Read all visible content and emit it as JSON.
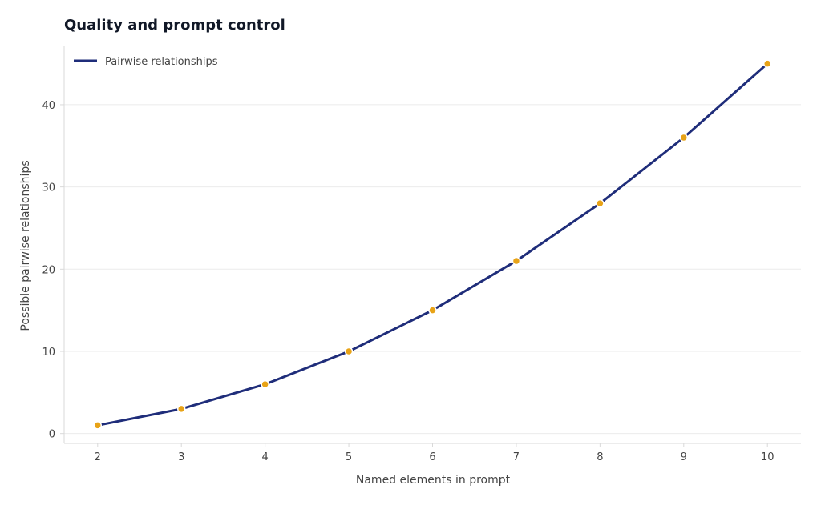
{
  "chart_data": {
    "type": "line",
    "title": "Quality and prompt control",
    "xlabel": "Named elements in prompt",
    "ylabel": "Possible pairwise relationships",
    "x": [
      2,
      3,
      4,
      5,
      6,
      7,
      8,
      9,
      10
    ],
    "series": [
      {
        "name": "Pairwise relationships",
        "values": [
          1,
          3,
          6,
          10,
          15,
          21,
          28,
          36,
          45
        ]
      }
    ],
    "xticks": [
      2,
      3,
      4,
      5,
      6,
      7,
      8,
      9,
      10
    ],
    "yticks": [
      0,
      10,
      20,
      30,
      40
    ],
    "xlim": [
      1.6,
      10.4
    ],
    "ylim": [
      -1.2,
      47.2
    ],
    "grid": true,
    "legend_position": "top-left",
    "colors": {
      "line": "#1f2d7a",
      "marker": "#e8a317",
      "grid": "#ebebeb",
      "axis": "#d9d9d9"
    }
  }
}
